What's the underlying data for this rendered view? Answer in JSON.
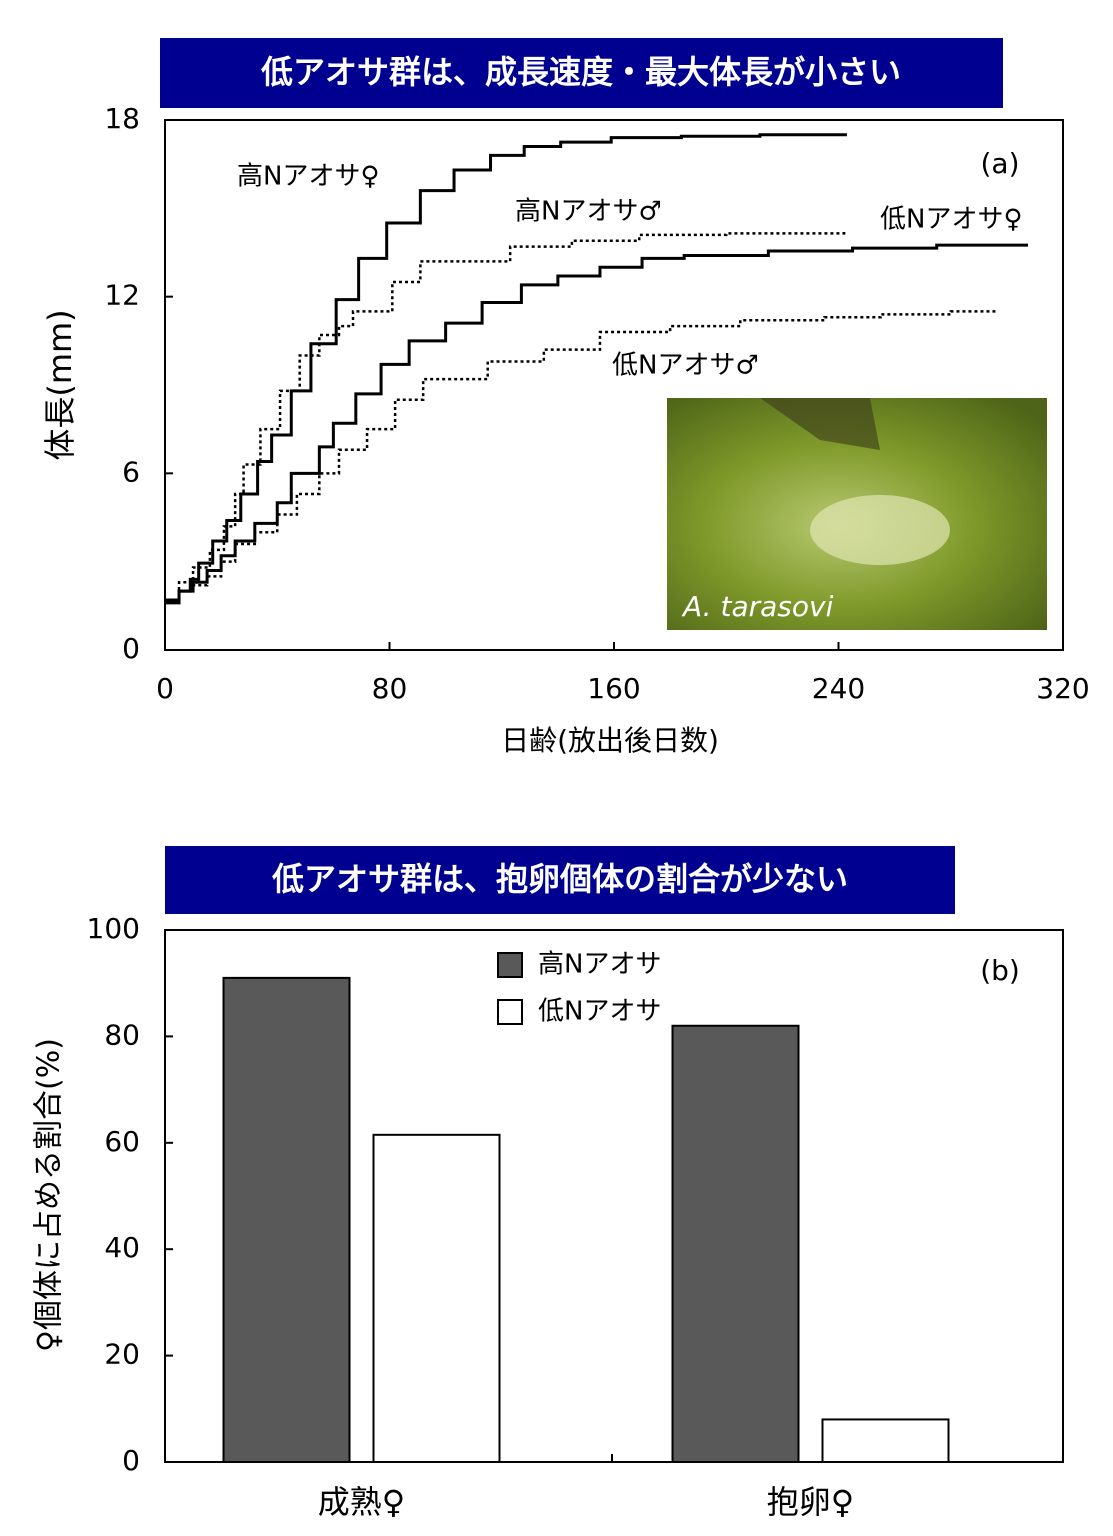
{
  "chart_data": [
    {
      "type": "step",
      "title": "低アオサ群は、成長速度・最大体長が小さい",
      "panel_label": "(a)",
      "x_label": "日齢(放出後日数)",
      "y_label": "体長(mm)",
      "photo_caption": "A. tarasovi",
      "xlim": [
        0,
        320
      ],
      "xticks": [
        0,
        80,
        160,
        240,
        320
      ],
      "ylim": [
        0,
        18
      ],
      "yticks": [
        0,
        6,
        12,
        18
      ],
      "grid": false,
      "series": [
        {
          "name": "高Nアオサ♀",
          "color": "#000000",
          "style": "solid",
          "x": [
            0,
            5,
            9,
            12,
            17,
            22,
            27,
            33,
            38,
            45,
            52,
            61,
            69,
            79,
            91,
            103,
            116,
            128,
            141,
            159,
            184,
            212,
            243
          ],
          "values": [
            1.7,
            2.0,
            2.4,
            2.95,
            3.7,
            4.4,
            5.3,
            6.4,
            7.3,
            8.8,
            10.4,
            11.9,
            13.3,
            14.5,
            15.6,
            16.3,
            16.8,
            17.1,
            17.25,
            17.4,
            17.45,
            17.5,
            17.5
          ]
        },
        {
          "name": "高Nアオサ♂",
          "color": "#000000",
          "style": "dotted",
          "x": [
            0,
            5,
            10,
            16,
            21,
            25,
            28,
            34,
            41,
            48,
            55,
            62,
            67,
            81,
            91,
            123,
            145,
            169,
            200,
            242
          ],
          "values": [
            1.7,
            2.3,
            2.8,
            3.4,
            4.2,
            5.3,
            6.3,
            7.5,
            8.8,
            10.0,
            10.7,
            11.0,
            11.5,
            12.5,
            13.2,
            13.7,
            13.9,
            14.1,
            14.15,
            14.2
          ]
        },
        {
          "name": "低Nアオサ♀",
          "color": "#000000",
          "style": "solid",
          "x": [
            0,
            5,
            10,
            15,
            20,
            25,
            32,
            40,
            45,
            55,
            60,
            68,
            77,
            87,
            100,
            113,
            127,
            140,
            155,
            170,
            185,
            215,
            245,
            275,
            307
          ],
          "values": [
            1.6,
            2.0,
            2.3,
            2.7,
            3.2,
            3.7,
            4.3,
            5.0,
            6.0,
            6.9,
            7.7,
            8.7,
            9.7,
            10.5,
            11.1,
            11.8,
            12.4,
            12.7,
            13.0,
            13.3,
            13.4,
            13.55,
            13.65,
            13.75,
            13.8
          ]
        },
        {
          "name": "低Nアオサ♂",
          "color": "#000000",
          "style": "dotted",
          "x": [
            0,
            5,
            10,
            15,
            20,
            25,
            32,
            40,
            47,
            55,
            62,
            72,
            82,
            92,
            115,
            135,
            155,
            180,
            205,
            235,
            255,
            280,
            296
          ],
          "values": [
            1.7,
            2.0,
            2.2,
            2.5,
            3.0,
            3.6,
            4.0,
            4.6,
            5.3,
            6.0,
            6.8,
            7.5,
            8.5,
            9.2,
            9.8,
            10.2,
            10.8,
            11.0,
            11.2,
            11.3,
            11.4,
            11.5,
            11.5
          ]
        }
      ]
    },
    {
      "type": "bar",
      "title": "低アオサ群は、抱卵個体の割合が少ない",
      "panel_label": "(b)",
      "y_label": "♀個体に占める割合(%)",
      "categories": [
        "成熟♀",
        "抱卵♀"
      ],
      "ylim": [
        0,
        100
      ],
      "yticks": [
        0,
        20,
        40,
        60,
        80,
        100
      ],
      "grid": false,
      "series": [
        {
          "name": "高Nアオサ",
          "color": "#595959",
          "values": [
            91,
            82
          ]
        },
        {
          "name": "低Nアオサ",
          "color": "#ffffff",
          "values": [
            61.5,
            8
          ]
        }
      ]
    }
  ]
}
